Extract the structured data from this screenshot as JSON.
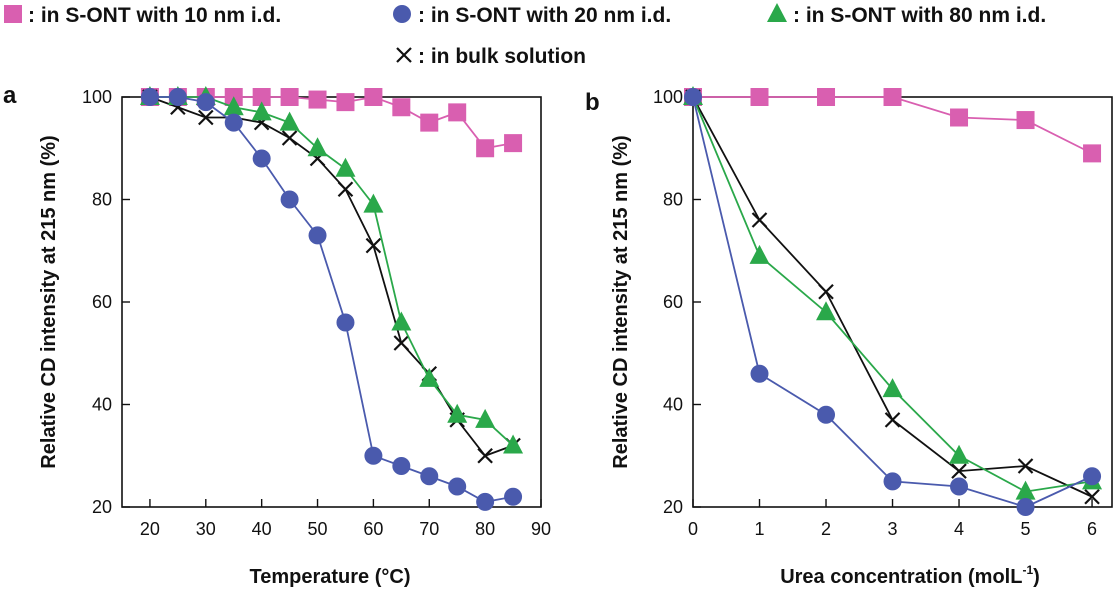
{
  "legend": [
    {
      "marker": "square",
      "color": "#d95fb0",
      "label": ": in S-ONT with 10 nm i.d."
    },
    {
      "marker": "circle",
      "color": "#4a5aad",
      "label": ": in S-ONT with 20 nm i.d."
    },
    {
      "marker": "triangle",
      "color": "#2aa84a",
      "label": ": in S-ONT with 80 nm i.d."
    },
    {
      "marker": "cross",
      "color": "#111111",
      "label": ": in bulk solution"
    }
  ],
  "chart_data": [
    {
      "type": "line",
      "panel_label": "a",
      "xlabel_main": "Temperature (",
      "xlabel_unit": "°C)",
      "ylabel_main": "Relative CD intensity at 215 nm (%)",
      "xlim": [
        15,
        90
      ],
      "ylim": [
        20,
        100
      ],
      "xticks": [
        20,
        30,
        40,
        50,
        60,
        70,
        80,
        90
      ],
      "yticks": [
        20,
        40,
        60,
        80,
        100
      ],
      "series": [
        {
          "name": ": in S-ONT with 10 nm i.d.",
          "marker": "square",
          "color": "#d95fb0",
          "x": [
            20,
            25,
            30,
            35,
            40,
            45,
            50,
            55,
            60,
            65,
            70,
            75,
            80,
            85
          ],
          "y": [
            100,
            100,
            100,
            100,
            100,
            100,
            99.5,
            99,
            100,
            98,
            95,
            97,
            90,
            91
          ]
        },
        {
          "name": ": in bulk solution",
          "marker": "cross",
          "color": "#111111",
          "x": [
            20,
            25,
            30,
            35,
            40,
            45,
            50,
            55,
            60,
            65,
            70,
            75,
            80,
            85
          ],
          "y": [
            100,
            98,
            96,
            96,
            95,
            92,
            88,
            82,
            71,
            52,
            46,
            37,
            30,
            32
          ]
        },
        {
          "name": ": in S-ONT with 80 nm i.d.",
          "marker": "triangle",
          "color": "#2aa84a",
          "x": [
            20,
            25,
            30,
            35,
            40,
            45,
            50,
            55,
            60,
            65,
            70,
            75,
            80,
            85
          ],
          "y": [
            100,
            100,
            100,
            98,
            97,
            95,
            90,
            86,
            79,
            56,
            45,
            38,
            37,
            32
          ]
        },
        {
          "name": ": in S-ONT with 20 nm i.d.",
          "marker": "circle",
          "color": "#4a5aad",
          "x": [
            20,
            25,
            30,
            35,
            40,
            45,
            50,
            55,
            60,
            65,
            70,
            75,
            80,
            85
          ],
          "y": [
            100,
            100,
            99,
            95,
            88,
            80,
            73,
            56,
            30,
            28,
            26,
            24,
            21,
            22
          ]
        }
      ]
    },
    {
      "type": "line",
      "panel_label": "b",
      "xlabel_main": "Urea concentration (molL",
      "xlabel_sup": "-1",
      "xlabel_close": ")",
      "ylabel_main": "Relative CD intensity at 215 nm (%)",
      "xlim": [
        0,
        6.3
      ],
      "ylim": [
        20,
        100
      ],
      "xticks": [
        0,
        1,
        2,
        3,
        4,
        5,
        6
      ],
      "yticks": [
        20,
        40,
        60,
        80,
        100
      ],
      "series": [
        {
          "name": ": in S-ONT with 10 nm i.d.",
          "marker": "square",
          "color": "#d95fb0",
          "x": [
            0,
            1,
            2,
            3,
            4,
            5,
            6
          ],
          "y": [
            100,
            100,
            100,
            100,
            96,
            95.5,
            89
          ]
        },
        {
          "name": ": in bulk solution",
          "marker": "cross",
          "color": "#111111",
          "x": [
            0,
            1,
            2,
            3,
            4,
            5,
            6
          ],
          "y": [
            100,
            76,
            62,
            37,
            27,
            28,
            22
          ]
        },
        {
          "name": ": in S-ONT with 80 nm i.d.",
          "marker": "triangle",
          "color": "#2aa84a",
          "x": [
            0,
            1,
            2,
            3,
            4,
            5,
            6
          ],
          "y": [
            100,
            69,
            58,
            43,
            30,
            23,
            25
          ]
        },
        {
          "name": ": in S-ONT with 20 nm i.d.",
          "marker": "circle",
          "color": "#4a5aad",
          "x": [
            0,
            1,
            2,
            3,
            4,
            5,
            6
          ],
          "y": [
            100,
            46,
            38,
            25,
            24,
            20,
            26
          ]
        }
      ]
    }
  ]
}
